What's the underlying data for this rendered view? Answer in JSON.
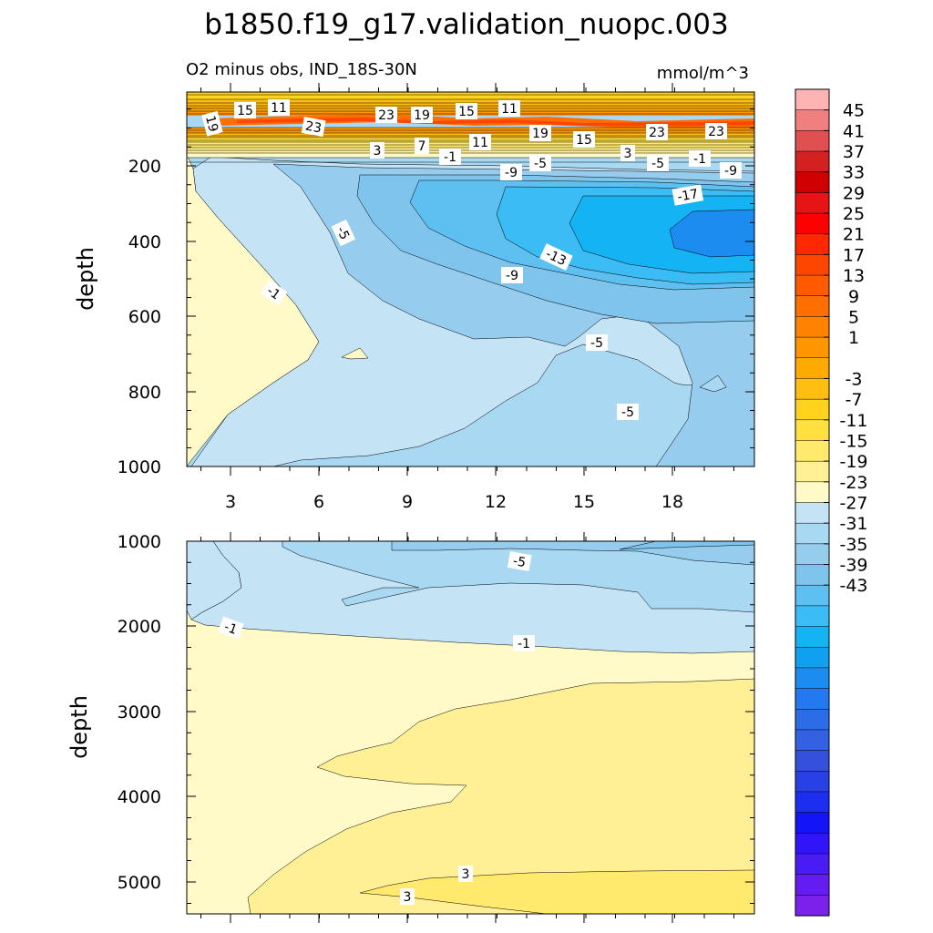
{
  "chart_data": {
    "type": "contour",
    "title": "b1850.f19_g17.validation_nuopc.003",
    "subtitle_left": "O2 minus obs, IND_18S-30N",
    "subtitle_right": "mmol/m^3",
    "panels": [
      {
        "name": "upper",
        "ylabel": "depth",
        "ylim": [
          1000,
          0
        ],
        "xlim": [
          1.5,
          20.5
        ],
        "y_ticks": [
          "200",
          "400",
          "600",
          "800",
          "1000"
        ],
        "x_ticks": [
          "3",
          "6",
          "9",
          "12",
          "15",
          "18"
        ],
        "contour_labels": [
          "15",
          "11",
          "19",
          "23",
          "23",
          "19",
          "15",
          "11",
          "19",
          "15",
          "23",
          "23",
          "3",
          "7",
          "-1",
          "11",
          "3",
          "-5",
          "-1",
          "-9",
          "-9",
          "-5",
          "-17",
          "-5",
          "-13",
          "-9",
          "-1",
          "-5",
          "-5"
        ]
      },
      {
        "name": "lower",
        "ylabel": "depth",
        "ylim": [
          5400,
          1000
        ],
        "xlim": [
          1.5,
          20.5
        ],
        "y_ticks": [
          "1000",
          "2000",
          "3000",
          "4000",
          "5000"
        ],
        "contour_labels": [
          "-5",
          "-1",
          "-1",
          "3",
          "3"
        ]
      }
    ],
    "colorbar": {
      "colors": [
        "#ffb3b3",
        "#f08080",
        "#e05050",
        "#d42020",
        "#d00000",
        "#e61414",
        "#ff0000",
        "#ff2800",
        "#ff4600",
        "#ff5a00",
        "#ff6e00",
        "#ff8200",
        "#ff9600",
        "#ffaa00",
        "#ffbe10",
        "#ffd21e",
        "#ffe040",
        "#ffea6e",
        "#fff096",
        "#fffac8",
        "#c4e4f6",
        "#a8d8f2",
        "#96ccee",
        "#7ec4ec",
        "#5ec0f0",
        "#3cbcf4",
        "#14b4f4",
        "#10a0f0",
        "#1c8cf0",
        "#2478f0",
        "#2c6ce6",
        "#3460e2",
        "#3450dc",
        "#2840e6",
        "#1e2ef0",
        "#1414f8",
        "#3214f8",
        "#4a1cf4",
        "#641cf0",
        "#7c20ec"
      ],
      "tick_labels": [
        "45",
        "41",
        "37",
        "33",
        "29",
        "25",
        "21",
        "17",
        "13",
        "9",
        "5",
        "1",
        "-3",
        "-7",
        "-11",
        "-15",
        "-19",
        "-23",
        "-27",
        "-31",
        "-35",
        "-39",
        "-43"
      ]
    }
  }
}
